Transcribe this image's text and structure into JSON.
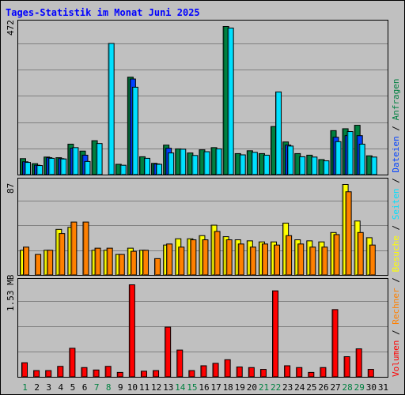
{
  "chart_data": {
    "title": "Tages-Statistik im Monat Juni 2025",
    "type": "bar",
    "categories": [
      "1",
      "2",
      "3",
      "4",
      "5",
      "6",
      "7",
      "8",
      "9",
      "10",
      "11",
      "12",
      "13",
      "14",
      "15",
      "16",
      "17",
      "18",
      "19",
      "20",
      "21",
      "22",
      "23",
      "24",
      "25",
      "26",
      "27",
      "28",
      "29",
      "30",
      "31"
    ],
    "weekend_days": [
      "1",
      "7",
      "8",
      "14",
      "15",
      "21",
      "22",
      "28",
      "29"
    ],
    "colors": {
      "anfragen": "#008040",
      "dateien": "#0040ff",
      "seiten": "#00e0ff",
      "besuche": "#ffff00",
      "rechner": "#ff8000",
      "volumen": "#ff0000",
      "title": "#0000ff",
      "weekend_day": "#008040",
      "weekday": "#000000"
    },
    "panels": [
      {
        "id": "hits",
        "max_label": "472",
        "max_value": 472,
        "series": [
          {
            "key": "anfragen",
            "values": [
              52,
              36,
              57,
              55,
              98,
              76,
              109,
              0,
              34,
              311,
              58,
              37,
              95,
              83,
              70,
              80,
              87,
              472,
              68,
              77,
              68,
              154,
              105,
              68,
              63,
              49,
              141,
              147,
              158,
              61,
              0
            ]
          },
          {
            "key": "dateien",
            "values": [
              42,
              31,
              55,
              52,
              85,
              63,
              0,
              0,
              0,
              305,
              0,
              35,
              85,
              0,
              0,
              0,
              0,
              0,
              0,
              0,
              0,
              0,
              95,
              0,
              0,
              0,
              120,
              125,
              125,
              0,
              0
            ]
          },
          {
            "key": "seiten",
            "values": [
              40,
              30,
              53,
              51,
              87,
              43,
              100,
              418,
              31,
              279,
              53,
              34,
              70,
              82,
              62,
              74,
              83,
              467,
              64,
              72,
              63,
              264,
              92,
              58,
              57,
              45,
              106,
              138,
              98,
              57,
              0
            ]
          }
        ]
      },
      {
        "id": "visits",
        "max_label": "87",
        "max_value": 87,
        "series": [
          {
            "key": "besuche",
            "values": [
              24,
              0,
              24,
              44,
              46,
              0,
              24,
              24,
              20,
              26,
              24,
              0,
              29,
              35,
              35,
              38,
              48,
              37,
              34,
              33,
              32,
              32,
              50,
              34,
              33,
              32,
              41,
              87,
              52,
              36,
              0
            ]
          },
          {
            "key": "rechner",
            "values": [
              27,
              20,
              24,
              40,
              51,
              51,
              26,
              26,
              20,
              23,
              24,
              16,
              30,
              27,
              34,
              34,
              42,
              34,
              30,
              27,
              30,
              29,
              38,
              30,
              27,
              27,
              39,
              80,
              41,
              29,
              0
            ]
          }
        ]
      },
      {
        "id": "volume",
        "max_label": "1.53 MB",
        "max_value": 1.53,
        "series": [
          {
            "key": "volumen",
            "values": [
              0.24,
              0.11,
              0.11,
              0.18,
              0.48,
              0.16,
              0.12,
              0.18,
              0.08,
              1.53,
              0.1,
              0.11,
              0.83,
              0.45,
              0.11,
              0.19,
              0.23,
              0.29,
              0.17,
              0.16,
              0.13,
              1.43,
              0.19,
              0.16,
              0.08,
              0.16,
              1.12,
              0.34,
              0.47,
              0.13,
              0
            ]
          }
        ]
      }
    ],
    "side_labels": [
      {
        "key": "volumen",
        "text": "Volumen"
      },
      {
        "key": "sep",
        "text": "/"
      },
      {
        "key": "rechner",
        "text": "Rechner"
      },
      {
        "key": "sep",
        "text": "/"
      },
      {
        "key": "besuche",
        "text": "Besuche"
      },
      {
        "key": "sep",
        "text": "/"
      },
      {
        "key": "seiten",
        "text": "Seiten"
      },
      {
        "key": "sep",
        "text": "/"
      },
      {
        "key": "dateien",
        "text": "Dateien"
      },
      {
        "key": "sep",
        "text": "/"
      },
      {
        "key": "anfragen",
        "text": "Anfragen"
      }
    ]
  }
}
